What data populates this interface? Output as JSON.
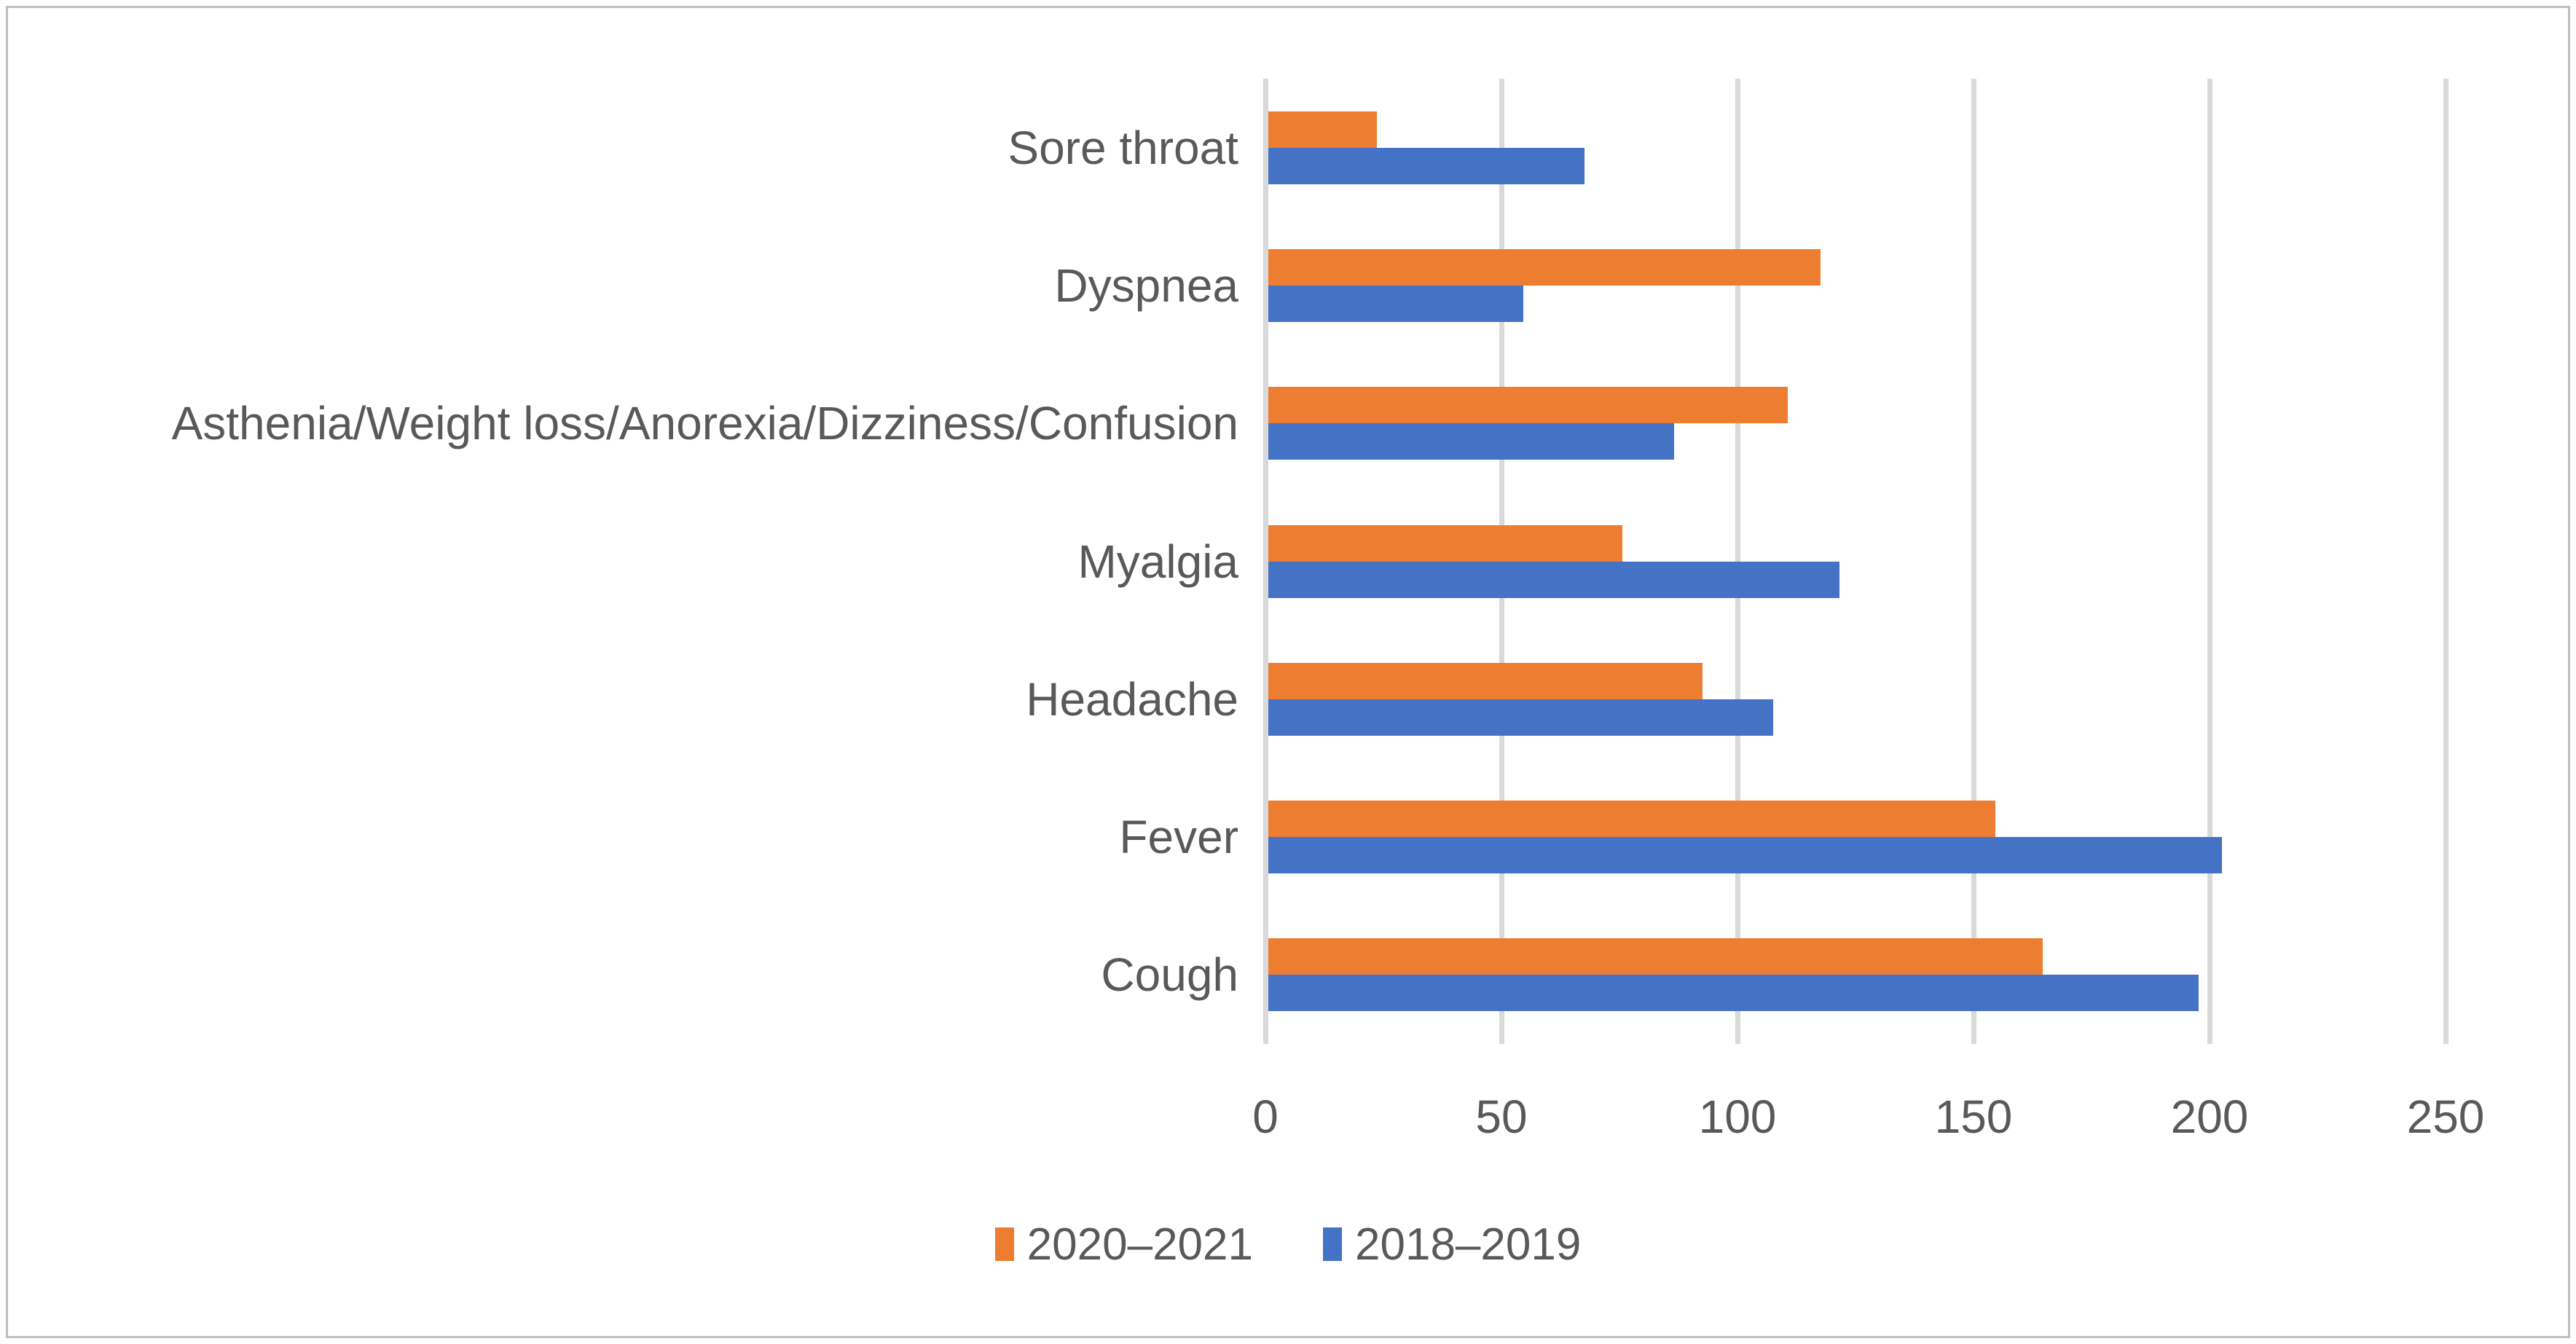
{
  "chart_data": {
    "type": "bar",
    "orientation": "horizontal",
    "title": "",
    "categories_top_to_bottom": [
      "Sore throat",
      "Dyspnea",
      "Asthenia/Weight loss/Anorexia/Dizziness/Confusion",
      "Myalgia",
      "Headache",
      "Fever",
      "Cough"
    ],
    "series": [
      {
        "name": "2020–2021",
        "color": "#ED7D31",
        "values": [
          23,
          117,
          110,
          75,
          92,
          154,
          164
        ]
      },
      {
        "name": "2018–2019",
        "color": "#4472C4",
        "values": [
          67,
          54,
          86,
          121,
          107,
          202,
          197
        ]
      }
    ],
    "x_axis": {
      "min": 0,
      "max": 250,
      "tick_interval": 50,
      "tick_labels": [
        "0",
        "50",
        "100",
        "150",
        "200",
        "250"
      ]
    },
    "grid": true,
    "legend_position": "bottom-center"
  },
  "legend": {
    "items": [
      {
        "label": "2020–2021",
        "color": "#ED7D31"
      },
      {
        "label": "2018–2019",
        "color": "#4472C4"
      }
    ]
  },
  "style_colors": {
    "gridline": "#D9D9D9",
    "axis_text": "#595959",
    "frame_border": "#BFBFBF",
    "background": "#FFFFFF"
  }
}
